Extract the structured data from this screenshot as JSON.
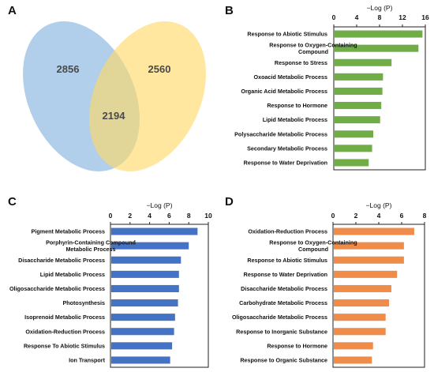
{
  "panels": {
    "a": {
      "label": "A"
    },
    "b": {
      "label": "B"
    },
    "c": {
      "label": "C"
    },
    "d": {
      "label": "D"
    }
  },
  "venn": {
    "left_only": "2856",
    "overlap": "2194",
    "right_only": "2560",
    "left_color": "#9dc3e6",
    "right_color": "#ffd966"
  },
  "chart_data": [
    {
      "panel": "B",
      "type": "bar",
      "orientation": "horizontal",
      "xlabel": "−Log (P)",
      "xlim": [
        0,
        16
      ],
      "xticks": [
        "0",
        "4",
        "8",
        "12",
        "16"
      ],
      "color": "#70ad47",
      "categories": [
        "Response to Abiotic Stimulus",
        "Response to Oxygen-Containing Compound",
        "Response to Stress",
        "Oxoacid Metabolic Process",
        "Organic Acid Metabolic Process",
        "Response to Hormone",
        "Lipid Metabolic Process",
        "Polysaccharide Metabolic Process",
        "Secondary Metabolic Process",
        "Response to Water Deprivation"
      ],
      "values": [
        15.5,
        14.8,
        10.1,
        8.6,
        8.5,
        8.3,
        8.1,
        6.9,
        6.7,
        6.1
      ]
    },
    {
      "panel": "C",
      "type": "bar",
      "orientation": "horizontal",
      "xlabel": "−Log (P)",
      "xlim": [
        0,
        10
      ],
      "xticks": [
        "0",
        "2",
        "4",
        "6",
        "8",
        "10"
      ],
      "color": "#4472c4",
      "categories": [
        "Pigment Metabolic Process",
        "Porphyrin-Containing Compound Metabolic Process",
        "Disaccharide Metabolic Process",
        "Lipid Metabolic Process",
        "Oligosaccharide Metabolic Process",
        "Photosynthesis",
        "Isoprenoid Metabolic Process",
        "Oxidation-Reduction Process",
        "Response To Abiotic Stimulus",
        "Ion Transport"
      ],
      "values": [
        8.9,
        8.0,
        7.2,
        7.0,
        7.0,
        6.9,
        6.6,
        6.5,
        6.3,
        6.1
      ]
    },
    {
      "panel": "D",
      "type": "bar",
      "orientation": "horizontal",
      "xlabel": "−Log (P)",
      "xlim": [
        0,
        8
      ],
      "xticks": [
        "0",
        "2",
        "4",
        "6",
        "8"
      ],
      "color": "#f08c4a",
      "categories": [
        "Oxidation-Reduction Process",
        "Response to Oxygen-Containing Compound",
        "Response to Abiotic Stimulus",
        "Response to Water Deprivation",
        "Disaccharide Metabolic Process",
        "Carbohydrate Metabolic Process",
        "Oligosaccharide Metabolic Process",
        "Response to Inorganic Substance",
        "Response to Hormone",
        "Response to Organic Substance"
      ],
      "values": [
        7.1,
        6.2,
        6.2,
        5.6,
        5.1,
        4.9,
        4.6,
        4.6,
        3.5,
        3.4
      ]
    }
  ]
}
